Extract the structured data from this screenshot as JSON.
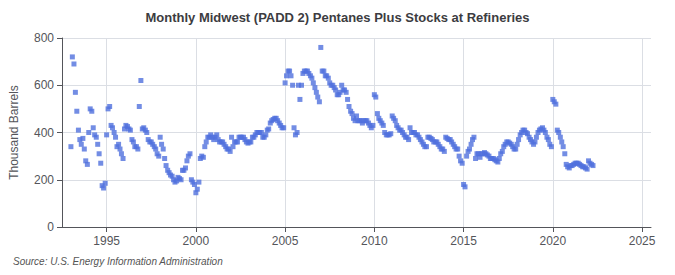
{
  "chart_data": {
    "type": "scatter",
    "title": "Monthly Midwest (PADD 2) Pentanes Plus Stocks at Refineries",
    "ylabel": "Thousand Barrels",
    "annotation": "Source: U.S. Energy Information Administration",
    "marker": "square",
    "grid": true,
    "xlim": [
      1992.5,
      2025.5
    ],
    "xticks": [
      1995,
      2000,
      2005,
      2010,
      2015,
      2020,
      2025
    ],
    "ylim": [
      0,
      800
    ],
    "yticks": [
      0,
      200,
      400,
      600,
      800
    ],
    "x": [
      1993.0,
      1993.08,
      1993.17,
      1993.25,
      1993.33,
      1993.42,
      1993.5,
      1993.58,
      1993.67,
      1993.75,
      1993.83,
      1993.92,
      1994.0,
      1994.08,
      1994.17,
      1994.25,
      1994.33,
      1994.42,
      1994.5,
      1994.58,
      1994.67,
      1994.75,
      1994.83,
      1994.92,
      1995.0,
      1995.08,
      1995.17,
      1995.25,
      1995.33,
      1995.42,
      1995.5,
      1995.58,
      1995.67,
      1995.75,
      1995.83,
      1995.92,
      1996.0,
      1996.08,
      1996.17,
      1996.25,
      1996.33,
      1996.42,
      1996.5,
      1996.58,
      1996.67,
      1996.75,
      1996.83,
      1996.92,
      1997.0,
      1997.08,
      1997.17,
      1997.25,
      1997.33,
      1997.42,
      1997.5,
      1997.58,
      1997.67,
      1997.75,
      1997.83,
      1997.92,
      1998.0,
      1998.08,
      1998.17,
      1998.25,
      1998.33,
      1998.42,
      1998.5,
      1998.58,
      1998.67,
      1998.75,
      1998.83,
      1998.92,
      1999.0,
      1999.08,
      1999.17,
      1999.25,
      1999.33,
      1999.42,
      1999.5,
      1999.58,
      1999.67,
      1999.75,
      1999.83,
      1999.92,
      2000.0,
      2000.08,
      2000.17,
      2000.25,
      2000.33,
      2000.42,
      2000.5,
      2000.58,
      2000.67,
      2000.75,
      2000.83,
      2000.92,
      2001.0,
      2001.08,
      2001.17,
      2001.25,
      2001.33,
      2001.42,
      2001.5,
      2001.58,
      2001.67,
      2001.75,
      2001.83,
      2001.92,
      2002.0,
      2002.08,
      2002.17,
      2002.25,
      2002.33,
      2002.42,
      2002.5,
      2002.58,
      2002.67,
      2002.75,
      2002.83,
      2002.92,
      2003.0,
      2003.08,
      2003.17,
      2003.25,
      2003.33,
      2003.42,
      2003.5,
      2003.58,
      2003.67,
      2003.75,
      2003.83,
      2003.92,
      2004.0,
      2004.08,
      2004.17,
      2004.25,
      2004.33,
      2004.42,
      2004.5,
      2004.58,
      2004.67,
      2004.75,
      2004.83,
      2004.92,
      2005.0,
      2005.08,
      2005.17,
      2005.25,
      2005.33,
      2005.42,
      2005.5,
      2005.58,
      2005.67,
      2005.75,
      2005.83,
      2005.92,
      2006.0,
      2006.08,
      2006.17,
      2006.25,
      2006.33,
      2006.42,
      2006.5,
      2006.58,
      2006.67,
      2006.75,
      2006.83,
      2006.92,
      2007.0,
      2007.08,
      2007.17,
      2007.25,
      2007.33,
      2007.42,
      2007.5,
      2007.58,
      2007.67,
      2007.75,
      2007.83,
      2007.92,
      2008.0,
      2008.08,
      2008.17,
      2008.25,
      2008.33,
      2008.42,
      2008.5,
      2008.58,
      2008.67,
      2008.75,
      2008.83,
      2008.92,
      2009.0,
      2009.08,
      2009.17,
      2009.25,
      2009.33,
      2009.42,
      2009.5,
      2009.58,
      2009.67,
      2009.75,
      2009.83,
      2009.92,
      2010.0,
      2010.08,
      2010.17,
      2010.25,
      2010.33,
      2010.42,
      2010.5,
      2010.58,
      2010.67,
      2010.75,
      2010.83,
      2010.92,
      2011.0,
      2011.08,
      2011.17,
      2011.25,
      2011.33,
      2011.42,
      2011.5,
      2011.58,
      2011.67,
      2011.75,
      2011.83,
      2011.92,
      2012.0,
      2012.08,
      2012.17,
      2012.25,
      2012.33,
      2012.42,
      2012.5,
      2012.58,
      2012.67,
      2012.75,
      2012.83,
      2012.92,
      2013.0,
      2013.08,
      2013.17,
      2013.25,
      2013.33,
      2013.42,
      2013.5,
      2013.58,
      2013.67,
      2013.75,
      2013.83,
      2013.92,
      2014.0,
      2014.08,
      2014.17,
      2014.25,
      2014.33,
      2014.42,
      2014.5,
      2014.58,
      2014.67,
      2014.75,
      2014.83,
      2014.92,
      2015.0,
      2015.08,
      2015.17,
      2015.25,
      2015.33,
      2015.42,
      2015.5,
      2015.58,
      2015.67,
      2015.75,
      2015.83,
      2015.92,
      2016.0,
      2016.08,
      2016.17,
      2016.25,
      2016.33,
      2016.42,
      2016.5,
      2016.58,
      2016.67,
      2016.75,
      2016.83,
      2016.92,
      2017.0,
      2017.08,
      2017.17,
      2017.25,
      2017.33,
      2017.42,
      2017.5,
      2017.58,
      2017.67,
      2017.75,
      2017.83,
      2017.92,
      2018.0,
      2018.08,
      2018.17,
      2018.25,
      2018.33,
      2018.42,
      2018.5,
      2018.58,
      2018.67,
      2018.75,
      2018.83,
      2018.92,
      2019.0,
      2019.08,
      2019.17,
      2019.25,
      2019.33,
      2019.42,
      2019.5,
      2019.58,
      2019.67,
      2019.75,
      2019.83,
      2019.92,
      2020.0,
      2020.08,
      2020.17,
      2020.25,
      2020.33,
      2020.42,
      2020.5,
      2020.58,
      2020.67,
      2020.75,
      2020.83,
      2020.92,
      2021.0,
      2021.08,
      2021.17,
      2021.25,
      2021.33,
      2021.42,
      2021.5,
      2021.58,
      2021.67,
      2021.75,
      2021.83,
      2021.92,
      2022.0,
      2022.08,
      2022.17,
      2022.25
    ],
    "values": [
      340,
      720,
      690,
      570,
      490,
      410,
      370,
      350,
      375,
      330,
      280,
      265,
      400,
      500,
      490,
      420,
      390,
      380,
      350,
      310,
      270,
      175,
      165,
      185,
      390,
      500,
      510,
      430,
      420,
      400,
      380,
      340,
      350,
      330,
      310,
      290,
      415,
      430,
      425,
      415,
      410,
      370,
      360,
      340,
      340,
      330,
      510,
      620,
      415,
      420,
      410,
      400,
      370,
      360,
      360,
      350,
      340,
      330,
      310,
      300,
      380,
      350,
      330,
      290,
      260,
      240,
      230,
      220,
      215,
      200,
      190,
      195,
      210,
      205,
      200,
      240,
      240,
      250,
      280,
      300,
      310,
      200,
      190,
      180,
      145,
      160,
      190,
      290,
      300,
      295,
      340,
      360,
      380,
      380,
      390,
      380,
      370,
      380,
      390,
      370,
      360,
      360,
      360,
      350,
      340,
      330,
      330,
      320,
      380,
      340,
      360,
      360,
      360,
      380,
      380,
      380,
      380,
      370,
      360,
      355,
      360,
      360,
      380,
      380,
      390,
      400,
      400,
      400,
      400,
      380,
      380,
      390,
      410,
      415,
      440,
      450,
      455,
      460,
      460,
      450,
      440,
      430,
      420,
      420,
      610,
      640,
      660,
      660,
      640,
      600,
      420,
      390,
      400,
      600,
      540,
      600,
      650,
      660,
      660,
      660,
      650,
      640,
      630,
      610,
      590,
      570,
      550,
      530,
      760,
      660,
      660,
      640,
      640,
      630,
      610,
      600,
      600,
      590,
      580,
      560,
      560,
      570,
      600,
      580,
      580,
      570,
      540,
      510,
      490,
      480,
      460,
      450,
      470,
      450,
      450,
      450,
      440,
      450,
      450,
      450,
      440,
      430,
      420,
      430,
      560,
      550,
      480,
      460,
      450,
      440,
      430,
      400,
      390,
      390,
      390,
      395,
      470,
      460,
      450,
      430,
      420,
      410,
      410,
      400,
      390,
      380,
      380,
      370,
      420,
      400,
      400,
      400,
      390,
      390,
      380,
      370,
      360,
      350,
      340,
      340,
      380,
      380,
      375,
      370,
      360,
      360,
      360,
      350,
      340,
      330,
      330,
      320,
      380,
      375,
      370,
      370,
      360,
      350,
      340,
      330,
      330,
      300,
      280,
      270,
      180,
      170,
      300,
      320,
      330,
      350,
      370,
      380,
      290,
      310,
      310,
      295,
      310,
      310,
      315,
      310,
      305,
      300,
      290,
      290,
      290,
      285,
      280,
      275,
      290,
      310,
      320,
      340,
      350,
      360,
      360,
      355,
      350,
      340,
      330,
      330,
      350,
      370,
      390,
      400,
      410,
      410,
      400,
      395,
      380,
      370,
      360,
      350,
      360,
      380,
      400,
      410,
      415,
      420,
      410,
      400,
      380,
      370,
      350,
      340,
      540,
      530,
      520,
      410,
      400,
      380,
      360,
      340,
      310,
      265,
      255,
      250,
      260,
      260,
      265,
      270,
      270,
      270,
      265,
      260,
      255,
      255,
      250,
      245,
      280,
      270,
      265,
      260
    ]
  }
}
